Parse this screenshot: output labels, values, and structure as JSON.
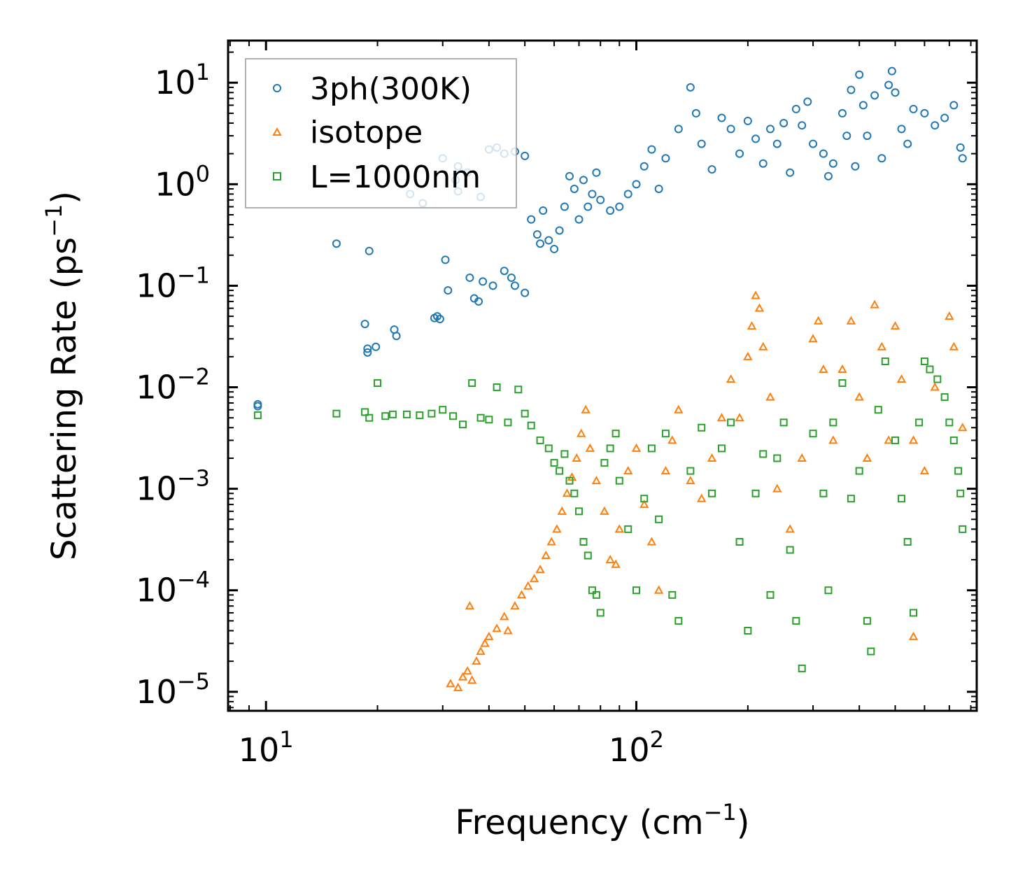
{
  "chart_data": {
    "type": "scatter",
    "xscale": "log",
    "yscale": "log",
    "xlim": [
      7.9,
      830
    ],
    "ylim": [
      6.5e-06,
      26
    ],
    "xlabel": "Frequency (cm",
    "xlabel_sup": "−1",
    "xlabel_end": ")",
    "ylabel": "Scattering Rate (ps",
    "ylabel_sup": "−1",
    "ylabel_end": ")",
    "legend_position": "top-left",
    "x_tick_labels": [
      {
        "value": 10,
        "base": "10",
        "exp": "1"
      },
      {
        "value": 100,
        "base": "10",
        "exp": "2"
      }
    ],
    "y_tick_labels": [
      {
        "value": 10,
        "base": "10",
        "exp": "1"
      },
      {
        "value": 1,
        "base": "10",
        "exp": "0"
      },
      {
        "value": 0.1,
        "base": "10",
        "exp": "−1"
      },
      {
        "value": 0.01,
        "base": "10",
        "exp": "−2"
      },
      {
        "value": 0.001,
        "base": "10",
        "exp": "−3"
      },
      {
        "value": 0.0001,
        "base": "10",
        "exp": "−4"
      },
      {
        "value": 1e-05,
        "base": "10",
        "exp": "−5"
      }
    ],
    "series": [
      {
        "name": "3ph(300K)",
        "marker": "circle",
        "color": "#1f77b4",
        "points": [
          [
            9.5,
            0.0068
          ],
          [
            9.5,
            0.0065
          ],
          [
            15.5,
            0.26
          ],
          [
            18.5,
            0.042
          ],
          [
            18.8,
            0.024
          ],
          [
            18.8,
            0.022
          ],
          [
            19,
            0.22
          ],
          [
            19.8,
            0.025
          ],
          [
            22.2,
            0.037
          ],
          [
            22.5,
            0.032
          ],
          [
            24.5,
            0.8
          ],
          [
            26.5,
            0.65
          ],
          [
            28.5,
            0.048
          ],
          [
            29,
            0.05
          ],
          [
            29.5,
            0.047
          ],
          [
            30.5,
            0.18
          ],
          [
            31,
            0.09
          ],
          [
            32.5,
            1.1
          ],
          [
            33,
            0.85
          ],
          [
            35.5,
            0.12
          ],
          [
            36.5,
            0.075
          ],
          [
            37.5,
            0.07
          ],
          [
            38.5,
            0.11
          ],
          [
            41,
            0.1
          ],
          [
            44,
            0.14
          ],
          [
            46,
            0.12
          ],
          [
            47,
            0.1
          ],
          [
            50,
            0.085
          ],
          [
            30,
            1.8
          ],
          [
            33,
            1.5
          ],
          [
            35,
            1.3
          ],
          [
            38,
            0.75
          ],
          [
            40,
            2.2
          ],
          [
            42,
            2.3
          ],
          [
            44,
            2.0
          ],
          [
            47,
            2.1
          ],
          [
            50,
            1.9
          ],
          [
            52,
            0.45
          ],
          [
            54,
            0.32
          ],
          [
            55,
            0.26
          ],
          [
            56,
            0.55
          ],
          [
            58,
            0.28
          ],
          [
            60,
            0.23
          ],
          [
            62,
            0.35
          ],
          [
            64,
            0.6
          ],
          [
            66,
            1.2
          ],
          [
            68,
            0.9
          ],
          [
            70,
            0.45
          ],
          [
            72,
            1.1
          ],
          [
            74,
            0.6
          ],
          [
            76,
            0.8
          ],
          [
            78,
            1.3
          ],
          [
            80,
            0.7
          ],
          [
            85,
            0.55
          ],
          [
            90,
            0.6
          ],
          [
            95,
            0.8
          ],
          [
            100,
            1.0
          ],
          [
            105,
            1.5
          ],
          [
            110,
            2.2
          ],
          [
            115,
            0.9
          ],
          [
            120,
            1.8
          ],
          [
            130,
            3.5
          ],
          [
            140,
            9.0
          ],
          [
            145,
            5.0
          ],
          [
            150,
            2.5
          ],
          [
            160,
            1.4
          ],
          [
            170,
            4.5
          ],
          [
            180,
            3.5
          ],
          [
            190,
            2.0
          ],
          [
            200,
            4.2
          ],
          [
            210,
            2.8
          ],
          [
            220,
            1.6
          ],
          [
            230,
            3.5
          ],
          [
            240,
            2.5
          ],
          [
            250,
            4.0
          ],
          [
            260,
            1.3
          ],
          [
            270,
            5.5
          ],
          [
            280,
            3.8
          ],
          [
            290,
            6.5
          ],
          [
            300,
            2.5
          ],
          [
            320,
            2.0
          ],
          [
            330,
            1.2
          ],
          [
            340,
            1.6
          ],
          [
            360,
            5.0
          ],
          [
            370,
            3.0
          ],
          [
            380,
            8.5
          ],
          [
            390,
            1.5
          ],
          [
            400,
            12.0
          ],
          [
            410,
            6.0
          ],
          [
            420,
            3.0
          ],
          [
            440,
            7.5
          ],
          [
            460,
            1.8
          ],
          [
            480,
            9.5
          ],
          [
            490,
            13.0
          ],
          [
            500,
            8.0
          ],
          [
            520,
            3.5
          ],
          [
            540,
            2.5
          ],
          [
            560,
            5.5
          ],
          [
            600,
            5.0
          ],
          [
            640,
            3.8
          ],
          [
            680,
            4.5
          ],
          [
            720,
            6.0
          ],
          [
            750,
            2.3
          ],
          [
            760,
            1.8
          ]
        ]
      },
      {
        "name": "isotope",
        "marker": "triangle",
        "color": "#ff7f0e",
        "points": [
          [
            31.5,
            1.2e-05
          ],
          [
            33,
            1.1e-05
          ],
          [
            34,
            1.4e-05
          ],
          [
            35,
            1.6e-05
          ],
          [
            36,
            1.3e-05
          ],
          [
            37,
            2e-05
          ],
          [
            38,
            2.5e-05
          ],
          [
            39,
            3e-05
          ],
          [
            40,
            3.5e-05
          ],
          [
            42,
            4.2e-05
          ],
          [
            44,
            5.5e-05
          ],
          [
            45,
            4e-05
          ],
          [
            47,
            7e-05
          ],
          [
            49,
            9e-05
          ],
          [
            51,
            0.00011
          ],
          [
            53,
            0.00013
          ],
          [
            55,
            0.00016
          ],
          [
            57,
            0.00022
          ],
          [
            59,
            0.0003
          ],
          [
            61,
            0.0004
          ],
          [
            63,
            0.0006
          ],
          [
            65,
            0.0009
          ],
          [
            67,
            0.0013
          ],
          [
            69,
            0.002
          ],
          [
            71,
            0.0035
          ],
          [
            73,
            0.006
          ],
          [
            35.5,
            7e-05
          ],
          [
            75,
            0.0025
          ],
          [
            78,
            0.0012
          ],
          [
            82,
            0.0006
          ],
          [
            85,
            0.0002
          ],
          [
            88,
            0.00018
          ],
          [
            90,
            0.0004
          ],
          [
            95,
            0.0015
          ],
          [
            100,
            0.0025
          ],
          [
            105,
            0.0007
          ],
          [
            110,
            0.0003
          ],
          [
            115,
            0.0001
          ],
          [
            120,
            0.0015
          ],
          [
            125,
            0.003
          ],
          [
            130,
            0.006
          ],
          [
            140,
            0.0012
          ],
          [
            150,
            0.0008
          ],
          [
            160,
            0.002
          ],
          [
            170,
            0.005
          ],
          [
            180,
            0.012
          ],
          [
            190,
            0.005
          ],
          [
            200,
            0.02
          ],
          [
            205,
            0.04
          ],
          [
            210,
            0.08
          ],
          [
            215,
            0.06
          ],
          [
            220,
            0.025
          ],
          [
            230,
            0.008
          ],
          [
            240,
            0.001
          ],
          [
            260,
            0.0004
          ],
          [
            280,
            0.002
          ],
          [
            300,
            0.03
          ],
          [
            310,
            0.045
          ],
          [
            320,
            0.015
          ],
          [
            340,
            0.003
          ],
          [
            360,
            0.015
          ],
          [
            380,
            0.045
          ],
          [
            400,
            0.008
          ],
          [
            420,
            0.002
          ],
          [
            440,
            0.065
          ],
          [
            460,
            0.025
          ],
          [
            480,
            0.003
          ],
          [
            500,
            0.04
          ],
          [
            520,
            0.012
          ],
          [
            560,
            0.003
          ],
          [
            560,
            3.5e-05
          ],
          [
            600,
            0.0015
          ],
          [
            640,
            0.01
          ],
          [
            700,
            0.05
          ],
          [
            720,
            0.025
          ],
          [
            760,
            0.004
          ]
        ]
      },
      {
        "name": "L=1000nm",
        "marker": "square",
        "color": "#2ca02c",
        "points": [
          [
            9.5,
            0.0053
          ],
          [
            15.5,
            0.0055
          ],
          [
            18.5,
            0.0057
          ],
          [
            19,
            0.005
          ],
          [
            20,
            0.011
          ],
          [
            21,
            0.0052
          ],
          [
            22,
            0.0054
          ],
          [
            24,
            0.0054
          ],
          [
            26,
            0.0053
          ],
          [
            28,
            0.0055
          ],
          [
            30,
            0.006
          ],
          [
            32,
            0.0052
          ],
          [
            34,
            0.0043
          ],
          [
            36,
            0.011
          ],
          [
            38,
            0.005
          ],
          [
            40,
            0.0048
          ],
          [
            42,
            0.01
          ],
          [
            45,
            0.0045
          ],
          [
            48,
            0.0095
          ],
          [
            50,
            0.0055
          ],
          [
            52,
            0.0042
          ],
          [
            55,
            0.003
          ],
          [
            58,
            0.0025
          ],
          [
            60,
            0.0018
          ],
          [
            62,
            0.0015
          ],
          [
            64,
            0.0022
          ],
          [
            66,
            0.0012
          ],
          [
            68,
            0.0009
          ],
          [
            70,
            0.0006
          ],
          [
            72,
            0.0003
          ],
          [
            74,
            0.00022
          ],
          [
            76,
            0.0001
          ],
          [
            78,
            9e-05
          ],
          [
            80,
            6e-05
          ],
          [
            82,
            0.0018
          ],
          [
            85,
            0.0025
          ],
          [
            88,
            0.0035
          ],
          [
            90,
            0.0012
          ],
          [
            95,
            0.0004
          ],
          [
            100,
            0.0001
          ],
          [
            105,
            0.0008
          ],
          [
            110,
            0.0025
          ],
          [
            115,
            0.0005
          ],
          [
            120,
            0.0035
          ],
          [
            125,
            9e-05
          ],
          [
            130,
            5e-05
          ],
          [
            140,
            0.0015
          ],
          [
            150,
            0.004
          ],
          [
            160,
            0.0009
          ],
          [
            170,
            0.0025
          ],
          [
            180,
            0.0045
          ],
          [
            190,
            0.0003
          ],
          [
            200,
            4e-05
          ],
          [
            210,
            0.0009
          ],
          [
            220,
            0.0022
          ],
          [
            230,
            9e-05
          ],
          [
            240,
            0.002
          ],
          [
            250,
            0.0045
          ],
          [
            260,
            0.00025
          ],
          [
            270,
            5e-05
          ],
          [
            280,
            1.7e-05
          ],
          [
            300,
            0.0035
          ],
          [
            320,
            0.0009
          ],
          [
            330,
            0.0001
          ],
          [
            340,
            0.0045
          ],
          [
            360,
            0.011
          ],
          [
            380,
            0.0008
          ],
          [
            400,
            0.0015
          ],
          [
            420,
            5e-05
          ],
          [
            430,
            2.5e-05
          ],
          [
            450,
            0.006
          ],
          [
            470,
            0.018
          ],
          [
            500,
            0.003
          ],
          [
            520,
            0.0008
          ],
          [
            540,
            0.0003
          ],
          [
            560,
            6e-05
          ],
          [
            580,
            0.0045
          ],
          [
            600,
            0.018
          ],
          [
            620,
            0.015
          ],
          [
            650,
            0.012
          ],
          [
            680,
            0.008
          ],
          [
            700,
            0.0045
          ],
          [
            720,
            0.003
          ],
          [
            740,
            0.0015
          ],
          [
            750,
            0.0009
          ],
          [
            760,
            0.0004
          ]
        ]
      }
    ]
  }
}
